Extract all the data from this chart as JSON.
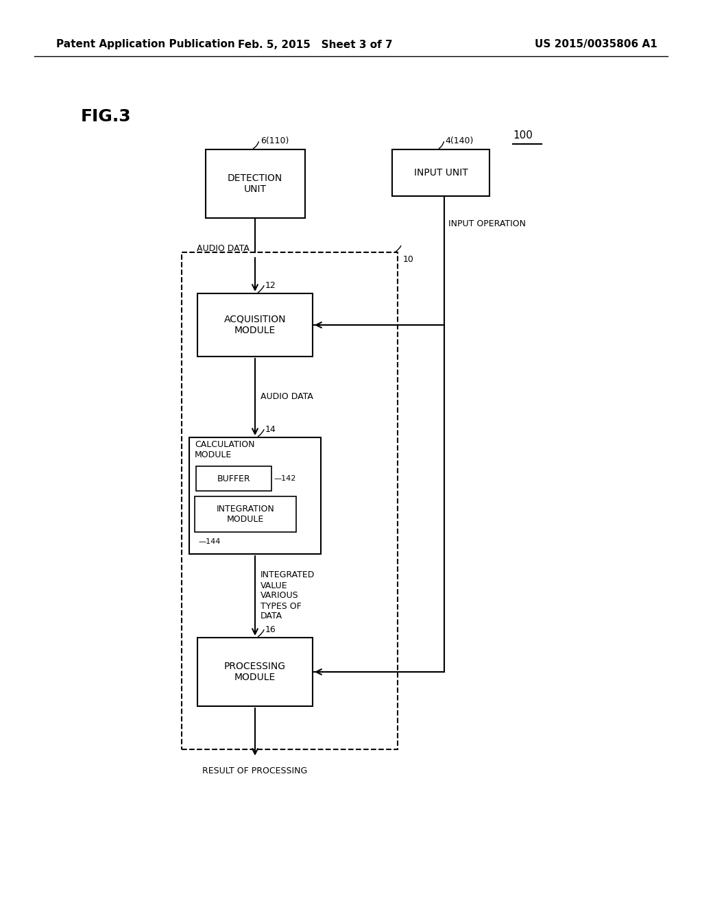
{
  "bg_color": "#ffffff",
  "header_left": "Patent Application Publication",
  "header_mid": "Feb. 5, 2015   Sheet 3 of 7",
  "header_right": "US 2015/0035806 A1",
  "fig_label": "FIG.3",
  "label_100": "100",
  "label_6": "6(110)",
  "label_4": "4(140)",
  "label_10": "10",
  "label_12": "12",
  "label_14": "14",
  "label_16": "16",
  "label_142": "—142",
  "label_144": "—144",
  "box_detection": "DETECTION\nUNIT",
  "box_input": "INPUT UNIT",
  "box_acquisition": "ACQUISITION\nMODULE",
  "box_calculation_title": "CALCULATION\nMODULE",
  "box_buffer": "BUFFER",
  "box_integration": "INTEGRATION\nMODULE",
  "box_processing": "PROCESSING\nMODULE",
  "text_audio_data_1": "AUDIO DATA",
  "text_input_op": "INPUT OPERATION",
  "text_audio_data_2": "AUDIO DATA",
  "text_integrated": "INTEGRATED\nVALUE\nVARIOUS\nTYPES OF\nDATA",
  "text_result": "RESULT OF PROCESSING"
}
